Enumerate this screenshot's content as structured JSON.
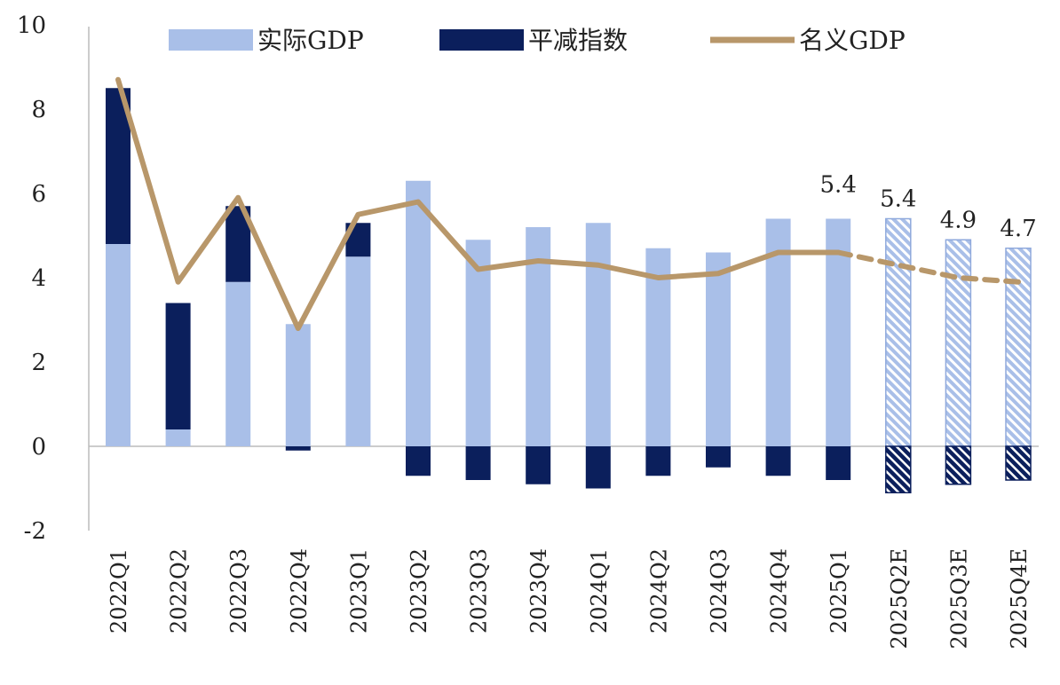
{
  "chart_data": {
    "type": "bar",
    "title": "",
    "xlabel": "",
    "ylabel": "",
    "ylim": [
      -2,
      10
    ],
    "yticks": [
      -2,
      0,
      2,
      4,
      6,
      8,
      10
    ],
    "grid": false,
    "legend_placement": "top",
    "categories": [
      "2022Q1",
      "2022Q2",
      "2022Q3",
      "2022Q4",
      "2023Q1",
      "2023Q2",
      "2023Q3",
      "2023Q4",
      "2024Q1",
      "2024Q2",
      "2024Q3",
      "2024Q4",
      "2025Q1",
      "2025Q2E",
      "2025Q3E",
      "2025Q4E"
    ],
    "estimated_from_index": 13,
    "series": [
      {
        "name": "实际GDP",
        "kind": "bar-stacked",
        "color": "#A9BFE8",
        "values": [
          4.8,
          0.4,
          3.9,
          2.9,
          4.5,
          6.3,
          4.9,
          5.2,
          5.3,
          4.7,
          4.6,
          5.4,
          5.4,
          5.4,
          4.9,
          4.7
        ]
      },
      {
        "name": "平减指数",
        "kind": "bar-stacked",
        "color": "#0B1F5C",
        "values": [
          3.7,
          3.0,
          1.8,
          -0.1,
          0.8,
          -0.7,
          -0.8,
          -0.9,
          -1.0,
          -0.7,
          -0.5,
          -0.7,
          -0.8,
          -1.1,
          -0.9,
          -0.8
        ]
      },
      {
        "name": "名义GDP",
        "kind": "line",
        "color": "#B8976A",
        "values": [
          8.7,
          3.9,
          5.9,
          2.8,
          5.5,
          5.8,
          4.2,
          4.4,
          4.3,
          4.0,
          4.1,
          4.6,
          4.6,
          4.3,
          4.0,
          3.9
        ]
      }
    ],
    "data_labels": [
      {
        "category": "2025Q1",
        "text": "5.4"
      },
      {
        "category": "2025Q2E",
        "text": "5.4"
      },
      {
        "category": "2025Q3E",
        "text": "4.9"
      },
      {
        "category": "2025Q4E",
        "text": "4.7"
      }
    ]
  }
}
